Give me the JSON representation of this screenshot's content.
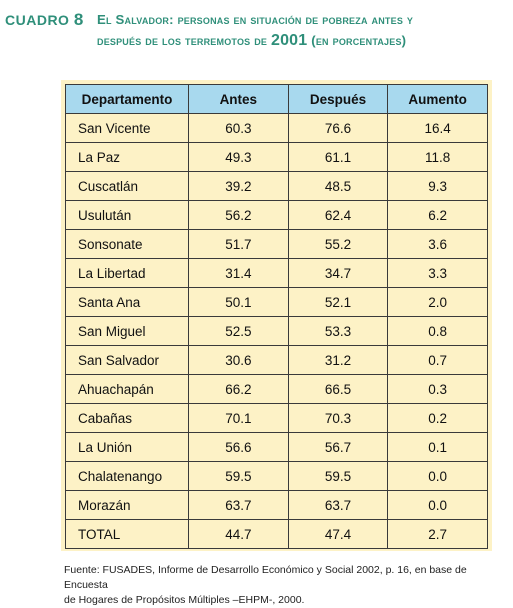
{
  "header": {
    "label_word": "CUADRO",
    "label_num": "8",
    "title_line1_a": "El Salvador",
    "title_line1_b": ": personas en situación de pobreza antes y",
    "title_line2_a": "después de los terremotos de ",
    "title_line2_year": "2001",
    "title_line2_b": " (en porcentajes)"
  },
  "table": {
    "columns": [
      "Departamento",
      "Antes",
      "Después",
      "Aumento"
    ],
    "rows": [
      [
        "San Vicente",
        "60.3",
        "76.6",
        "16.4"
      ],
      [
        "La Paz",
        "49.3",
        "61.1",
        "11.8"
      ],
      [
        "Cuscatlán",
        "39.2",
        "48.5",
        "9.3"
      ],
      [
        "Usulután",
        "56.2",
        "62.4",
        "6.2"
      ],
      [
        "Sonsonate",
        "51.7",
        "55.2",
        "3.6"
      ],
      [
        "La Libertad",
        "31.4",
        "34.7",
        "3.3"
      ],
      [
        "Santa Ana",
        "50.1",
        "52.1",
        "2.0"
      ],
      [
        "San Miguel",
        "52.5",
        "53.3",
        "0.8"
      ],
      [
        "San Salvador",
        "30.6",
        "31.2",
        "0.7"
      ],
      [
        "Ahuachapán",
        "66.2",
        "66.5",
        "0.3"
      ],
      [
        "Cabañas",
        "70.1",
        "70.3",
        "0.2"
      ],
      [
        "La Unión",
        "56.6",
        "56.7",
        "0.1"
      ],
      [
        "Chalatenango",
        "59.5",
        "59.5",
        "0.0"
      ],
      [
        "Morazán",
        "63.7",
        "63.7",
        "0.0"
      ],
      [
        "TOTAL",
        "44.7",
        "47.4",
        "2.7"
      ]
    ]
  },
  "source": {
    "line1": "Fuente: FUSADES, Informe de Desarrollo Económico y Social 2002, p. 16, en base de Encuesta",
    "line2": "de Hogares de Propósitos Múltiples –EHPM-, 2000."
  },
  "colors": {
    "title": "#2f8f7a",
    "header_fill": "#a8d9ee",
    "panel_fill": "#fdf2c6"
  }
}
